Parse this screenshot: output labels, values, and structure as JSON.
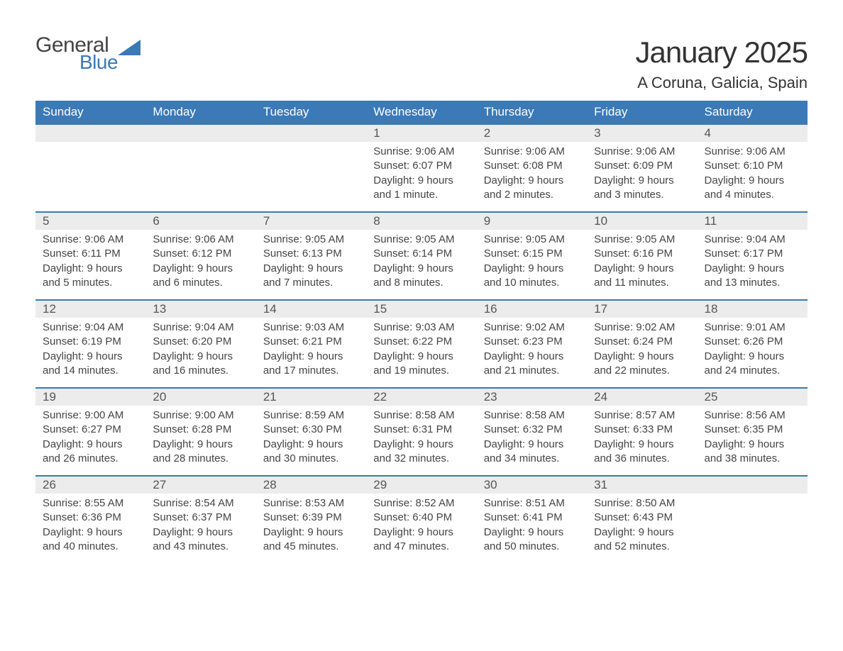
{
  "brand": {
    "part1": "General",
    "part2": "Blue",
    "accent_color": "#3b79b7"
  },
  "title": "January 2025",
  "location": "A Coruna, Galicia, Spain",
  "weekday_headers": [
    "Sunday",
    "Monday",
    "Tuesday",
    "Wednesday",
    "Thursday",
    "Friday",
    "Saturday"
  ],
  "colors": {
    "header_bg": "#3b79b7",
    "header_text": "#ffffff",
    "daynum_bg": "#ececec",
    "body_text": "#444444",
    "week_border": "#3b79b7",
    "page_bg": "#ffffff"
  },
  "typography": {
    "title_fontsize": 42,
    "location_fontsize": 22,
    "header_fontsize": 17,
    "daynum_fontsize": 17,
    "body_fontsize": 15
  },
  "layout": {
    "columns": 7,
    "rows": 5,
    "first_day_column_index": 3
  },
  "weeks": [
    [
      null,
      null,
      null,
      {
        "n": "1",
        "sunrise": "Sunrise: 9:06 AM",
        "sunset": "Sunset: 6:07 PM",
        "daylight": "Daylight: 9 hours and 1 minute."
      },
      {
        "n": "2",
        "sunrise": "Sunrise: 9:06 AM",
        "sunset": "Sunset: 6:08 PM",
        "daylight": "Daylight: 9 hours and 2 minutes."
      },
      {
        "n": "3",
        "sunrise": "Sunrise: 9:06 AM",
        "sunset": "Sunset: 6:09 PM",
        "daylight": "Daylight: 9 hours and 3 minutes."
      },
      {
        "n": "4",
        "sunrise": "Sunrise: 9:06 AM",
        "sunset": "Sunset: 6:10 PM",
        "daylight": "Daylight: 9 hours and 4 minutes."
      }
    ],
    [
      {
        "n": "5",
        "sunrise": "Sunrise: 9:06 AM",
        "sunset": "Sunset: 6:11 PM",
        "daylight": "Daylight: 9 hours and 5 minutes."
      },
      {
        "n": "6",
        "sunrise": "Sunrise: 9:06 AM",
        "sunset": "Sunset: 6:12 PM",
        "daylight": "Daylight: 9 hours and 6 minutes."
      },
      {
        "n": "7",
        "sunrise": "Sunrise: 9:05 AM",
        "sunset": "Sunset: 6:13 PM",
        "daylight": "Daylight: 9 hours and 7 minutes."
      },
      {
        "n": "8",
        "sunrise": "Sunrise: 9:05 AM",
        "sunset": "Sunset: 6:14 PM",
        "daylight": "Daylight: 9 hours and 8 minutes."
      },
      {
        "n": "9",
        "sunrise": "Sunrise: 9:05 AM",
        "sunset": "Sunset: 6:15 PM",
        "daylight": "Daylight: 9 hours and 10 minutes."
      },
      {
        "n": "10",
        "sunrise": "Sunrise: 9:05 AM",
        "sunset": "Sunset: 6:16 PM",
        "daylight": "Daylight: 9 hours and 11 minutes."
      },
      {
        "n": "11",
        "sunrise": "Sunrise: 9:04 AM",
        "sunset": "Sunset: 6:17 PM",
        "daylight": "Daylight: 9 hours and 13 minutes."
      }
    ],
    [
      {
        "n": "12",
        "sunrise": "Sunrise: 9:04 AM",
        "sunset": "Sunset: 6:19 PM",
        "daylight": "Daylight: 9 hours and 14 minutes."
      },
      {
        "n": "13",
        "sunrise": "Sunrise: 9:04 AM",
        "sunset": "Sunset: 6:20 PM",
        "daylight": "Daylight: 9 hours and 16 minutes."
      },
      {
        "n": "14",
        "sunrise": "Sunrise: 9:03 AM",
        "sunset": "Sunset: 6:21 PM",
        "daylight": "Daylight: 9 hours and 17 minutes."
      },
      {
        "n": "15",
        "sunrise": "Sunrise: 9:03 AM",
        "sunset": "Sunset: 6:22 PM",
        "daylight": "Daylight: 9 hours and 19 minutes."
      },
      {
        "n": "16",
        "sunrise": "Sunrise: 9:02 AM",
        "sunset": "Sunset: 6:23 PM",
        "daylight": "Daylight: 9 hours and 21 minutes."
      },
      {
        "n": "17",
        "sunrise": "Sunrise: 9:02 AM",
        "sunset": "Sunset: 6:24 PM",
        "daylight": "Daylight: 9 hours and 22 minutes."
      },
      {
        "n": "18",
        "sunrise": "Sunrise: 9:01 AM",
        "sunset": "Sunset: 6:26 PM",
        "daylight": "Daylight: 9 hours and 24 minutes."
      }
    ],
    [
      {
        "n": "19",
        "sunrise": "Sunrise: 9:00 AM",
        "sunset": "Sunset: 6:27 PM",
        "daylight": "Daylight: 9 hours and 26 minutes."
      },
      {
        "n": "20",
        "sunrise": "Sunrise: 9:00 AM",
        "sunset": "Sunset: 6:28 PM",
        "daylight": "Daylight: 9 hours and 28 minutes."
      },
      {
        "n": "21",
        "sunrise": "Sunrise: 8:59 AM",
        "sunset": "Sunset: 6:30 PM",
        "daylight": "Daylight: 9 hours and 30 minutes."
      },
      {
        "n": "22",
        "sunrise": "Sunrise: 8:58 AM",
        "sunset": "Sunset: 6:31 PM",
        "daylight": "Daylight: 9 hours and 32 minutes."
      },
      {
        "n": "23",
        "sunrise": "Sunrise: 8:58 AM",
        "sunset": "Sunset: 6:32 PM",
        "daylight": "Daylight: 9 hours and 34 minutes."
      },
      {
        "n": "24",
        "sunrise": "Sunrise: 8:57 AM",
        "sunset": "Sunset: 6:33 PM",
        "daylight": "Daylight: 9 hours and 36 minutes."
      },
      {
        "n": "25",
        "sunrise": "Sunrise: 8:56 AM",
        "sunset": "Sunset: 6:35 PM",
        "daylight": "Daylight: 9 hours and 38 minutes."
      }
    ],
    [
      {
        "n": "26",
        "sunrise": "Sunrise: 8:55 AM",
        "sunset": "Sunset: 6:36 PM",
        "daylight": "Daylight: 9 hours and 40 minutes."
      },
      {
        "n": "27",
        "sunrise": "Sunrise: 8:54 AM",
        "sunset": "Sunset: 6:37 PM",
        "daylight": "Daylight: 9 hours and 43 minutes."
      },
      {
        "n": "28",
        "sunrise": "Sunrise: 8:53 AM",
        "sunset": "Sunset: 6:39 PM",
        "daylight": "Daylight: 9 hours and 45 minutes."
      },
      {
        "n": "29",
        "sunrise": "Sunrise: 8:52 AM",
        "sunset": "Sunset: 6:40 PM",
        "daylight": "Daylight: 9 hours and 47 minutes."
      },
      {
        "n": "30",
        "sunrise": "Sunrise: 8:51 AM",
        "sunset": "Sunset: 6:41 PM",
        "daylight": "Daylight: 9 hours and 50 minutes."
      },
      {
        "n": "31",
        "sunrise": "Sunrise: 8:50 AM",
        "sunset": "Sunset: 6:43 PM",
        "daylight": "Daylight: 9 hours and 52 minutes."
      },
      null
    ]
  ]
}
